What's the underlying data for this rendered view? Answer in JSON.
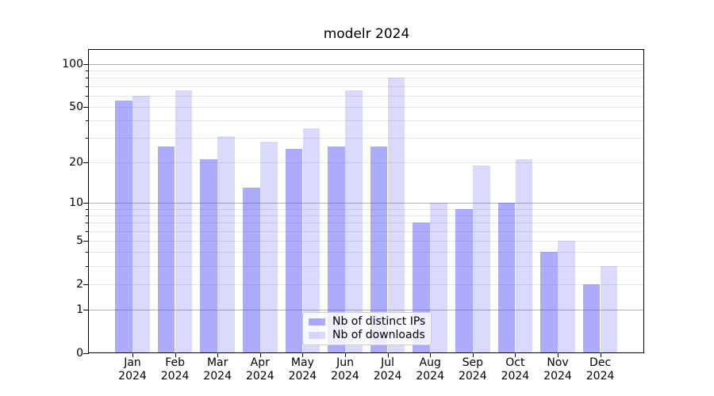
{
  "chart_data": {
    "type": "bar",
    "title": "modelr 2024",
    "categories": [
      "Jan",
      "Feb",
      "Mar",
      "Apr",
      "May",
      "Jun",
      "Jul",
      "Aug",
      "Sep",
      "Oct",
      "Nov",
      "Dec"
    ],
    "category_year": "2024",
    "series": [
      {
        "name": "Nb of distinct IPs",
        "values": [
          55,
          26,
          21,
          13,
          25,
          26,
          26,
          7,
          9,
          10,
          4,
          2
        ],
        "color": "rgba(70,70,245,0.45)",
        "color_hex_on_white": "#ababf9"
      },
      {
        "name": "Nb of downloads",
        "values": [
          60,
          65,
          31,
          28,
          35,
          65,
          80,
          10,
          19,
          21,
          5,
          3
        ],
        "color": "rgba(70,70,245,0.20)",
        "color_hex_on_white": "#dadafd"
      }
    ],
    "yscale": "log1p",
    "ylim": [
      0,
      128
    ],
    "ytick_labels": [
      100,
      50,
      20,
      10,
      5,
      2,
      1,
      0
    ],
    "grid": {
      "major_values": [
        1,
        10,
        100
      ],
      "minor_values": [
        2,
        3,
        4,
        5,
        6,
        7,
        8,
        9,
        20,
        30,
        40,
        50,
        60,
        70,
        80,
        90
      ],
      "major_color": "#b2b2b2",
      "minor_color": "#e7e7e7"
    },
    "legend_position": "lower-center-inside",
    "spine_color": "#000000",
    "background_color": "#ffffff"
  }
}
